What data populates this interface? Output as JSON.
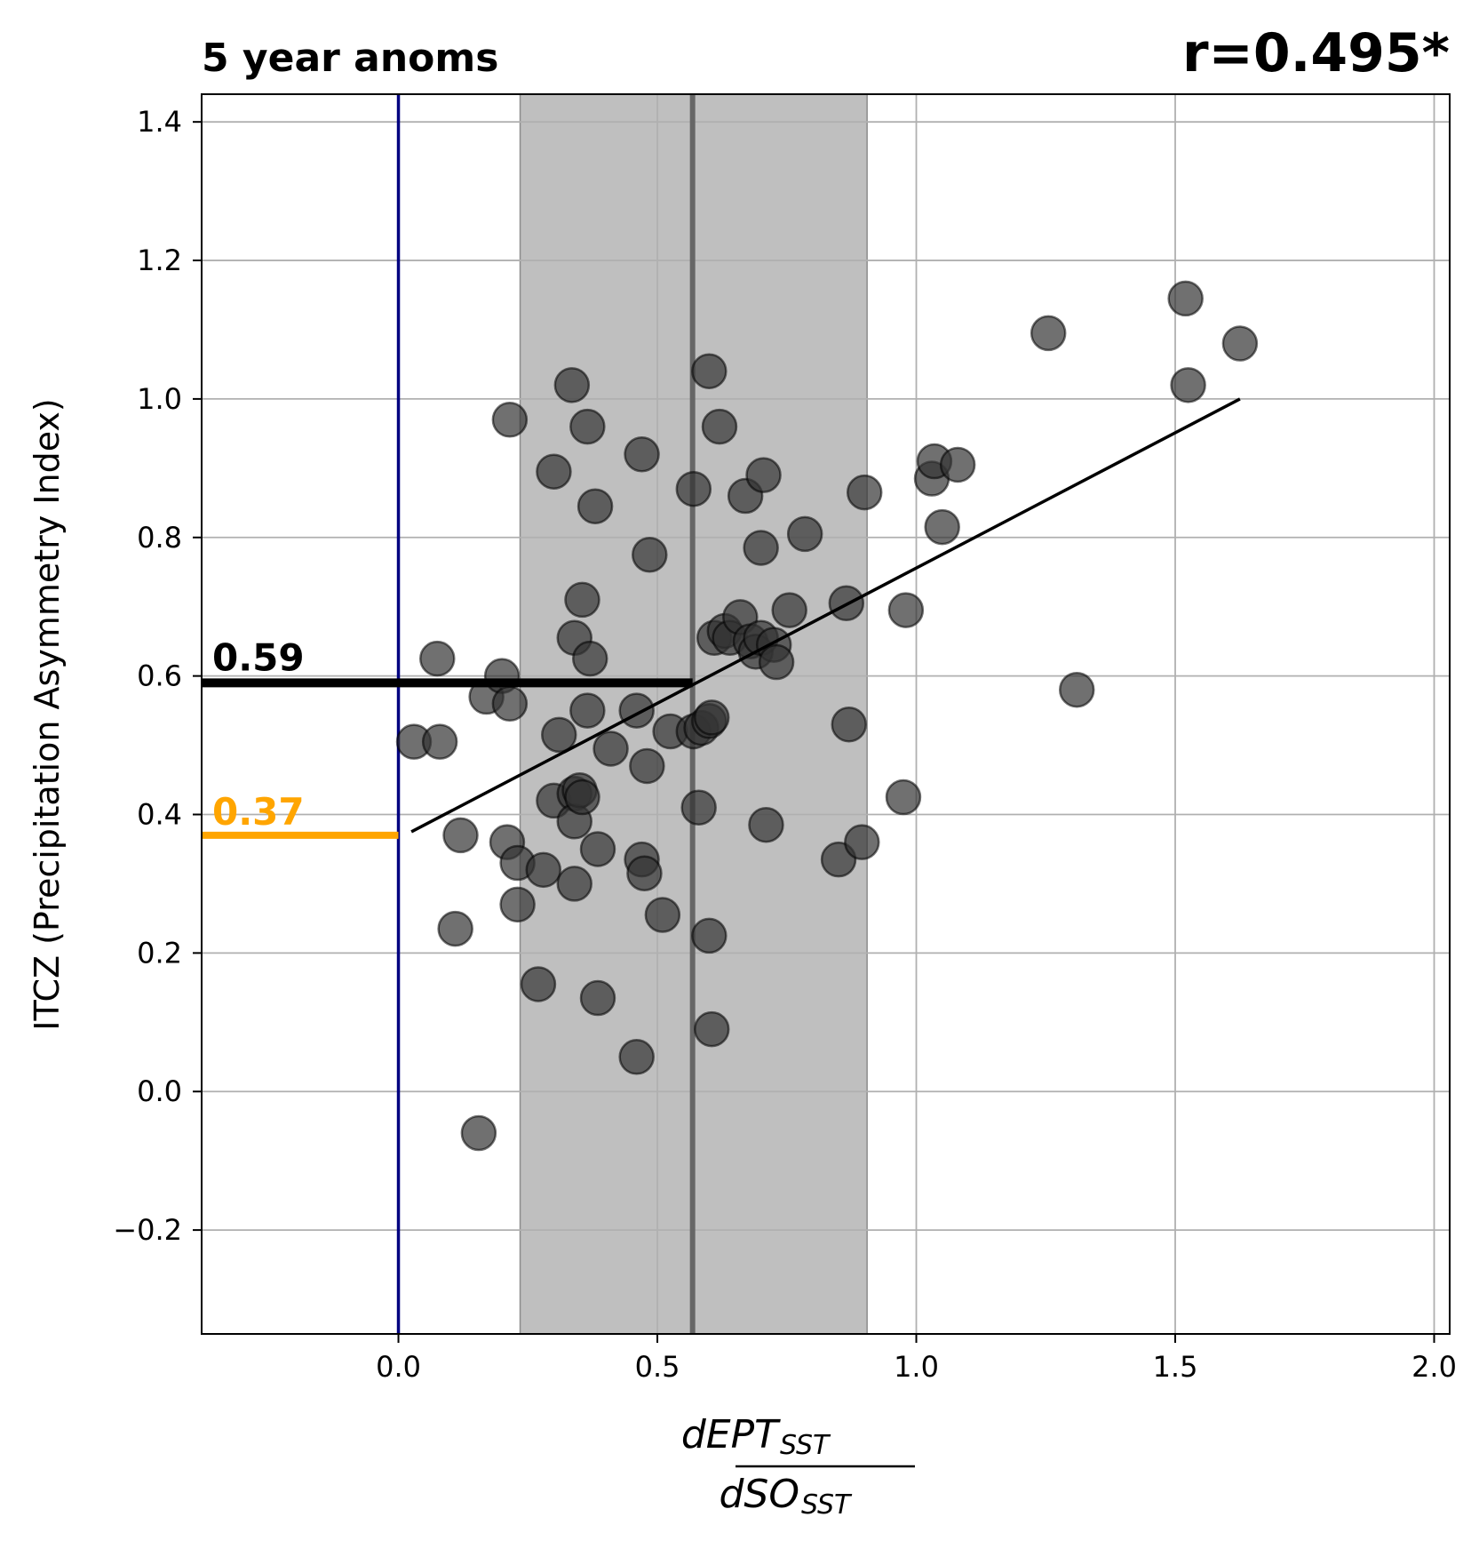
{
  "chart_data": {
    "type": "scatter",
    "title": "5 year anoms",
    "corr_label": "r=0.495*",
    "ylabel": "ITCZ (Precipitation Asymmetry Index)",
    "xlabel_numerator": "dEPT",
    "xlabel_numerator_sub": "SST",
    "xlabel_denominator": "dSO",
    "xlabel_denominator_sub": "SST",
    "xlim": [
      -0.38,
      2.03
    ],
    "ylim": [
      -0.35,
      1.44
    ],
    "xticks": [
      0.0,
      0.5,
      1.0,
      1.5,
      2.0
    ],
    "xtick_labels": [
      "0.0",
      "0.5",
      "1.0",
      "1.5",
      "2.0"
    ],
    "yticks": [
      -0.2,
      0.0,
      0.2,
      0.4,
      0.6,
      0.8,
      1.0,
      1.2,
      1.4
    ],
    "ytick_labels": [
      "−0.2",
      "0.0",
      "0.2",
      "0.4",
      "0.6",
      "0.8",
      "1.0",
      "1.2",
      "1.4"
    ],
    "grid": true,
    "marker_color": "#333333",
    "shaded_band": {
      "x0": 0.235,
      "x1": 0.905,
      "color": "#bfbfbf"
    },
    "mean_line_x": 0.568,
    "zero_line_x": 0.0,
    "zero_line_color": "#000080",
    "regression": {
      "x0": 0.025,
      "y0": 0.375,
      "x1": 1.625,
      "y1": 1.0
    },
    "annotations": [
      {
        "label": "0.59",
        "value": 0.59,
        "color": "#000000"
      },
      {
        "label": "0.37",
        "value": 0.37,
        "color": "#ffa500"
      }
    ],
    "points": [
      [
        0.03,
        0.505
      ],
      [
        0.08,
        0.505
      ],
      [
        0.075,
        0.625
      ],
      [
        0.11,
        0.235
      ],
      [
        0.12,
        0.37
      ],
      [
        0.155,
        -0.06
      ],
      [
        0.17,
        0.57
      ],
      [
        0.2,
        0.6
      ],
      [
        0.215,
        0.56
      ],
      [
        0.21,
        0.36
      ],
      [
        0.215,
        0.97
      ],
      [
        0.23,
        0.33
      ],
      [
        0.23,
        0.27
      ],
      [
        0.27,
        0.155
      ],
      [
        0.28,
        0.32
      ],
      [
        0.3,
        0.895
      ],
      [
        0.3,
        0.42
      ],
      [
        0.31,
        0.515
      ],
      [
        0.335,
        1.02
      ],
      [
        0.34,
        0.655
      ],
      [
        0.34,
        0.43
      ],
      [
        0.34,
        0.39
      ],
      [
        0.34,
        0.3
      ],
      [
        0.35,
        0.435
      ],
      [
        0.355,
        0.425
      ],
      [
        0.355,
        0.71
      ],
      [
        0.365,
        0.96
      ],
      [
        0.365,
        0.55
      ],
      [
        0.37,
        0.625
      ],
      [
        0.38,
        0.845
      ],
      [
        0.385,
        0.135
      ],
      [
        0.385,
        0.35
      ],
      [
        0.41,
        0.495
      ],
      [
        0.46,
        0.05
      ],
      [
        0.46,
        0.55
      ],
      [
        0.47,
        0.92
      ],
      [
        0.47,
        0.335
      ],
      [
        0.475,
        0.315
      ],
      [
        0.48,
        0.47
      ],
      [
        0.485,
        0.775
      ],
      [
        0.51,
        0.255
      ],
      [
        0.525,
        0.52
      ],
      [
        0.57,
        0.87
      ],
      [
        0.57,
        0.52
      ],
      [
        0.58,
        0.41
      ],
      [
        0.585,
        0.525
      ],
      [
        0.6,
        0.535
      ],
      [
        0.605,
        0.54
      ],
      [
        0.6,
        1.04
      ],
      [
        0.6,
        0.225
      ],
      [
        0.605,
        0.09
      ],
      [
        0.61,
        0.655
      ],
      [
        0.62,
        0.96
      ],
      [
        0.63,
        0.665
      ],
      [
        0.64,
        0.655
      ],
      [
        0.66,
        0.685
      ],
      [
        0.67,
        0.86
      ],
      [
        0.68,
        0.65
      ],
      [
        0.69,
        0.635
      ],
      [
        0.7,
        0.655
      ],
      [
        0.7,
        0.785
      ],
      [
        0.705,
        0.89
      ],
      [
        0.71,
        0.385
      ],
      [
        0.725,
        0.645
      ],
      [
        0.73,
        0.62
      ],
      [
        0.755,
        0.695
      ],
      [
        0.785,
        0.805
      ],
      [
        0.85,
        0.335
      ],
      [
        0.865,
        0.705
      ],
      [
        0.87,
        0.53
      ],
      [
        0.895,
        0.36
      ],
      [
        0.9,
        0.865
      ],
      [
        0.975,
        0.425
      ],
      [
        0.98,
        0.695
      ],
      [
        1.03,
        0.885
      ],
      [
        1.035,
        0.91
      ],
      [
        1.05,
        0.815
      ],
      [
        1.08,
        0.905
      ],
      [
        1.255,
        1.095
      ],
      [
        1.31,
        0.58
      ],
      [
        1.52,
        1.145
      ],
      [
        1.525,
        1.02
      ],
      [
        1.625,
        1.08
      ]
    ]
  }
}
